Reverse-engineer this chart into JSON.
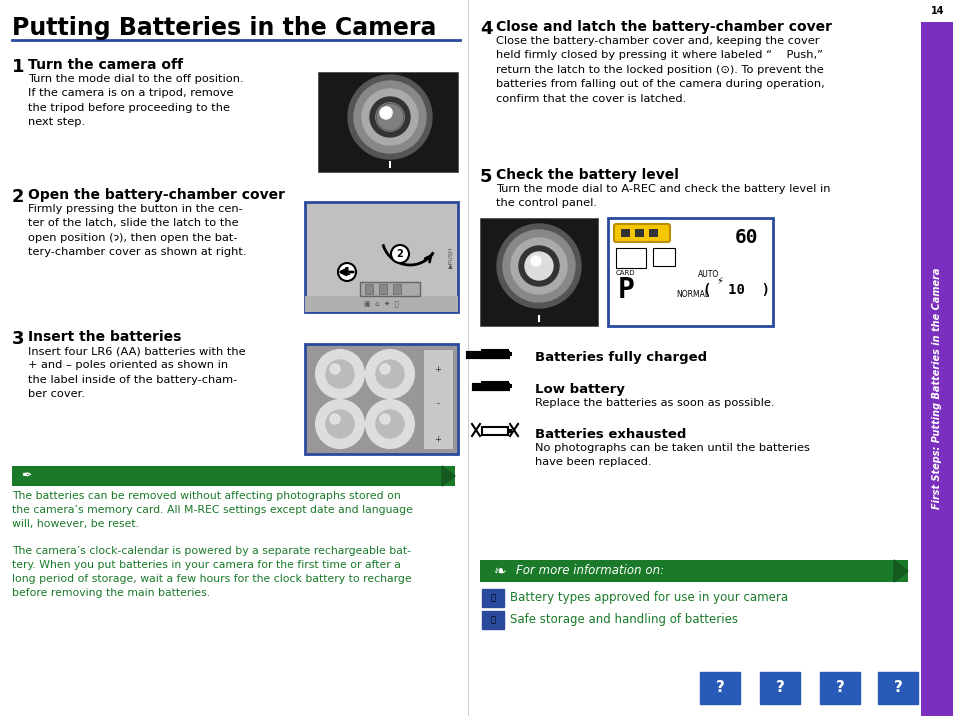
{
  "bg_color": "#ffffff",
  "title": "Putting Batteries in the Camera",
  "divider_color": "#2a4a9e",
  "sidebar_color": "#7b2fbe",
  "sidebar_text": "First Steps: Putting Batteries in the Camera",
  "sidebar_page": "14",
  "green_color": "#1a7a2a",
  "dark_green": "#145a1e",
  "blue_border": "#2a4a9e",
  "note_green_bg": "#1a7a2a",
  "note_text_color": "#1a7a2a",
  "step1_heading": "Turn the camera off",
  "step1_body": "Turn the mode dial to the off position.\nIf the camera is on a tripod, remove\nthe tripod before proceeding to the\nnext step.",
  "step2_heading": "Open the battery-chamber cover",
  "step2_body": "Firmly pressing the button in the cen-\nter of the latch, slide the latch to the\nopen position (ɂ), then open the bat-\ntery-chamber cover as shown at right.",
  "step3_heading": "Insert the batteries",
  "step3_body": "Insert four LR6 (AA) batteries with the\n+ and – poles oriented as shown in\nthe label inside of the battery-cham-\nber cover.",
  "step4_heading": "Close and latch the battery-chamber cover",
  "step4_body": "Close the battery-chamber cover and, keeping the cover\nheld firmly closed by pressing it where labeled “    Push,”\nreturn the latch to the locked position (⊙). To prevent the\nbatteries from falling out of the camera during operation,\nconfirm that the cover is latched.",
  "step5_heading": "Check the battery level",
  "step5_body": "Turn the mode dial to A-REC and check the battery level in\nthe control panel.",
  "note1": "The batteries can be removed without affecting photographs stored on\nthe camera’s memory card. All M-REC settings except date and language\nwill, however, be reset.",
  "note2": "The camera’s clock-calendar is powered by a separate rechargeable bat-\ntery. When you put batteries in your camera for the first time or after a\nlong period of storage, wait a few hours for the clock battery to recharge\nbefore removing the main batteries.",
  "batt_full_heading": "Batteries fully charged",
  "batt_low_heading": "Low battery",
  "batt_low_body": "Replace the batteries as soon as possible.",
  "batt_exhausted_heading": "Batteries exhausted",
  "batt_exhausted_body": "No photographs can be taken until the batteries\nhave been replaced.",
  "for_more_text": "For more information on:",
  "more_item1": "Battery types approved for use in your camera",
  "more_item2": "Safe storage and handling of batteries"
}
